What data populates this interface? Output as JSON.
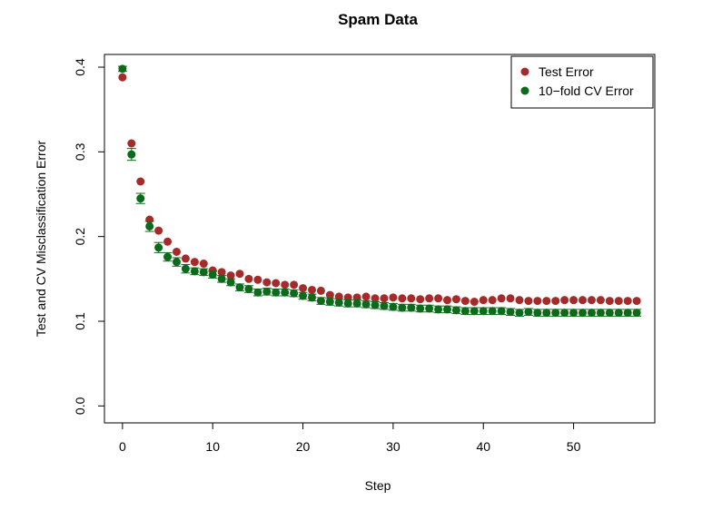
{
  "chart_data": {
    "type": "scatter",
    "title": "Spam Data",
    "xlabel": "Step",
    "ylabel": "Test and CV Misclassification Error",
    "xlim": [
      -2,
      59
    ],
    "ylim": [
      -0.02,
      0.415
    ],
    "xticks": [
      "0",
      "10",
      "20",
      "30",
      "40",
      "50"
    ],
    "yticks": [
      "0.0",
      "0.1",
      "0.2",
      "0.3",
      "0.4"
    ],
    "legend_position": "top-right",
    "x": [
      0,
      1,
      2,
      3,
      4,
      5,
      6,
      7,
      8,
      9,
      10,
      11,
      12,
      13,
      14,
      15,
      16,
      17,
      18,
      19,
      20,
      21,
      22,
      23,
      24,
      25,
      26,
      27,
      28,
      29,
      30,
      31,
      32,
      33,
      34,
      35,
      36,
      37,
      38,
      39,
      40,
      41,
      42,
      43,
      44,
      45,
      46,
      47,
      48,
      49,
      50,
      51,
      52,
      53,
      54,
      55,
      56,
      57
    ],
    "series": [
      {
        "name": "Test Error",
        "color": "#a52a2a",
        "values": [
          0.388,
          0.31,
          0.265,
          0.22,
          0.207,
          0.194,
          0.182,
          0.174,
          0.17,
          0.168,
          0.16,
          0.158,
          0.154,
          0.156,
          0.15,
          0.149,
          0.146,
          0.145,
          0.143,
          0.143,
          0.139,
          0.137,
          0.136,
          0.131,
          0.129,
          0.128,
          0.128,
          0.129,
          0.127,
          0.127,
          0.128,
          0.127,
          0.127,
          0.126,
          0.127,
          0.127,
          0.125,
          0.126,
          0.124,
          0.123,
          0.125,
          0.125,
          0.127,
          0.127,
          0.125,
          0.124,
          0.124,
          0.124,
          0.124,
          0.125,
          0.125,
          0.125,
          0.125,
          0.125,
          0.124,
          0.124,
          0.124,
          0.124
        ]
      },
      {
        "name": "10−fold CV Error",
        "color": "#0b6b1a",
        "values": [
          0.398,
          0.297,
          0.245,
          0.212,
          0.187,
          0.176,
          0.17,
          0.162,
          0.159,
          0.158,
          0.155,
          0.15,
          0.146,
          0.14,
          0.138,
          0.134,
          0.135,
          0.134,
          0.134,
          0.133,
          0.13,
          0.128,
          0.124,
          0.123,
          0.122,
          0.121,
          0.121,
          0.12,
          0.119,
          0.118,
          0.117,
          0.116,
          0.116,
          0.115,
          0.115,
          0.114,
          0.114,
          0.113,
          0.112,
          0.112,
          0.112,
          0.112,
          0.112,
          0.111,
          0.11,
          0.111,
          0.11,
          0.11,
          0.11,
          0.11,
          0.11,
          0.11,
          0.11,
          0.11,
          0.11,
          0.11,
          0.11,
          0.11
        ],
        "error": [
          0.003,
          0.007,
          0.006,
          0.006,
          0.006,
          0.005,
          0.005,
          0.005,
          0.004,
          0.004,
          0.004,
          0.004,
          0.004,
          0.004,
          0.004,
          0.004,
          0.004,
          0.004,
          0.004,
          0.004,
          0.004,
          0.004,
          0.004,
          0.004,
          0.004,
          0.004,
          0.004,
          0.004,
          0.004,
          0.004,
          0.004,
          0.004,
          0.004,
          0.004,
          0.004,
          0.004,
          0.004,
          0.004,
          0.004,
          0.004,
          0.004,
          0.004,
          0.004,
          0.004,
          0.004,
          0.004,
          0.004,
          0.004,
          0.004,
          0.004,
          0.004,
          0.004,
          0.004,
          0.004,
          0.004,
          0.004,
          0.004,
          0.004
        ]
      }
    ]
  }
}
